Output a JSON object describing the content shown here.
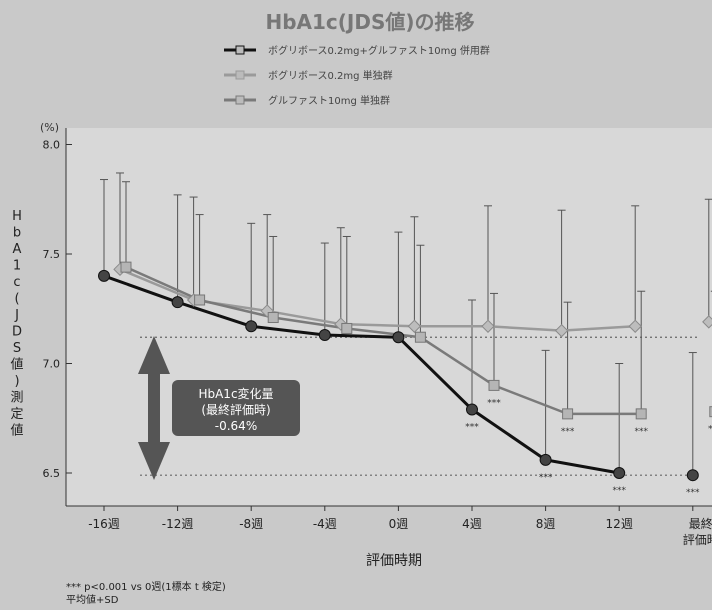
{
  "chart_data": {
    "type": "line",
    "title": "HbA1c(JDS値)の推移",
    "unit": "(%)",
    "ylabel": "HbA1c(JDS値)測定値",
    "xlabel": "評価時期",
    "ylim": [
      6.4,
      8.0
    ],
    "yticks": [
      6.5,
      7.0,
      7.5,
      8.0
    ],
    "categories": [
      "-16週",
      "-12週",
      "-8週",
      "-4週",
      "0週",
      "4週",
      "8週",
      "12週",
      "最終評価時"
    ],
    "legend_position": "top",
    "grid": false,
    "series": [
      {
        "name": "ボグリボース0.2mg+グルファスト10mg 併用群",
        "color": "#111111",
        "values": [
          7.4,
          7.28,
          7.17,
          7.13,
          7.12,
          6.79,
          6.56,
          6.5,
          6.49
        ],
        "sd": [
          0.44,
          0.49,
          0.47,
          0.42,
          0.48,
          0.5,
          0.5,
          0.5,
          0.56
        ],
        "significance": [
          "",
          "",
          "",
          "",
          "",
          "***",
          "***",
          "***",
          "***"
        ]
      },
      {
        "name": "ボグリボース0.2mg 単独群",
        "color": "#9a9a9a",
        "values": [
          7.43,
          7.29,
          7.24,
          7.18,
          7.17,
          7.17,
          7.15,
          7.17,
          7.19
        ],
        "sd": [
          0.44,
          0.47,
          0.44,
          0.44,
          0.5,
          0.55,
          0.55,
          0.55,
          0.56
        ],
        "significance": [
          "",
          "",
          "",
          "",
          "",
          "",
          "",
          "",
          ""
        ]
      },
      {
        "name": "グルファスト10mg 単独群",
        "color": "#7a7a7a",
        "values": [
          7.44,
          7.29,
          7.21,
          7.16,
          7.12,
          6.9,
          6.77,
          6.77,
          6.78
        ],
        "sd": [
          0.39,
          0.39,
          0.37,
          0.42,
          0.42,
          0.42,
          0.51,
          0.56,
          0.55
        ],
        "significance": [
          "",
          "",
          "",
          "",
          "",
          "***",
          "***",
          "***",
          "***"
        ]
      }
    ],
    "annotation": {
      "title": "HbA1c変化量",
      "subtitle": "(最終評価時)",
      "value": "-0.64%"
    },
    "footnotes": [
      "*** p<0.001 vs 0週(1標本 t 検定)",
      "平均値+SD"
    ]
  }
}
